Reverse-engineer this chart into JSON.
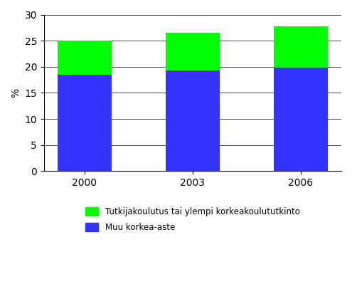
{
  "categories": [
    "2000",
    "2003",
    "2006"
  ],
  "blue_values": [
    18.5,
    19.3,
    19.8
  ],
  "green_values": [
    6.5,
    7.2,
    8.0
  ],
  "blue_color": "#3333FF",
  "green_color": "#00FF00",
  "ylabel": "%",
  "ylim": [
    0,
    30
  ],
  "yticks": [
    0,
    5,
    10,
    15,
    20,
    25,
    30
  ],
  "legend_green": "Tutkijakoulutus tai ylempi korkeakoulututkinto",
  "legend_blue": "Muu korkea-aste",
  "background_color": "#FFFFFF",
  "bar_width": 0.5
}
